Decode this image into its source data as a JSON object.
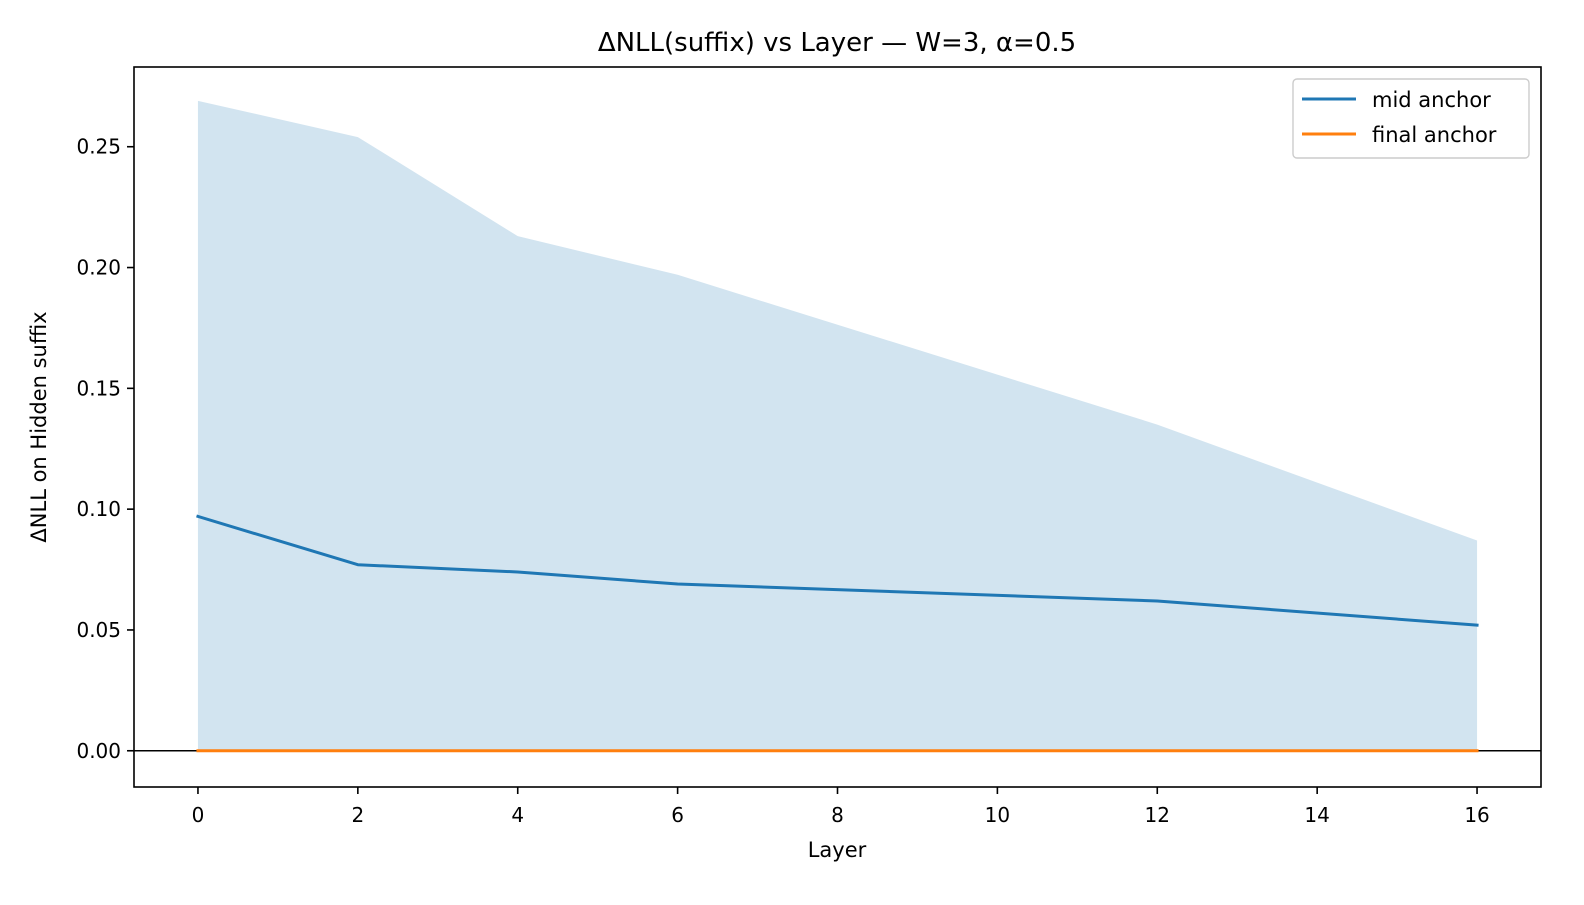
{
  "chart_data": {
    "type": "line",
    "title": "ΔNLL(suffix) vs Layer — W=3, α=0.5",
    "xlabel": "Layer",
    "ylabel": "ΔNLL on Hidden suffix",
    "xlim": [
      -0.8,
      16.8
    ],
    "ylim": [
      -0.015,
      0.283
    ],
    "xticks": [
      0,
      2,
      4,
      6,
      8,
      10,
      12,
      14,
      16
    ],
    "xtick_labels": [
      "0",
      "2",
      "4",
      "6",
      "8",
      "10",
      "12",
      "14",
      "16"
    ],
    "yticks": [
      0.0,
      0.05,
      0.1,
      0.15,
      0.2,
      0.25
    ],
    "ytick_labels": [
      "0.00",
      "0.05",
      "0.10",
      "0.15",
      "0.20",
      "0.25"
    ],
    "grid": false,
    "legend_position": "top-right",
    "zero_line": true,
    "x": [
      0,
      2,
      4,
      6,
      12,
      16
    ],
    "series": [
      {
        "name": "mid anchor",
        "color": "#1f77b4",
        "values": [
          0.097,
          0.077,
          0.074,
          0.069,
          0.062,
          0.052
        ],
        "band_lower": [
          0.0,
          0.0,
          0.0,
          0.0,
          0.0,
          0.0
        ],
        "band_upper": [
          0.269,
          0.254,
          0.213,
          0.197,
          0.135,
          0.087
        ],
        "band_color": "#1f77b4",
        "band_opacity": 0.2
      },
      {
        "name": "final anchor",
        "color": "#ff7f0e",
        "values": [
          0.0,
          0.0,
          0.0,
          0.0,
          0.0,
          0.0
        ]
      }
    ]
  }
}
